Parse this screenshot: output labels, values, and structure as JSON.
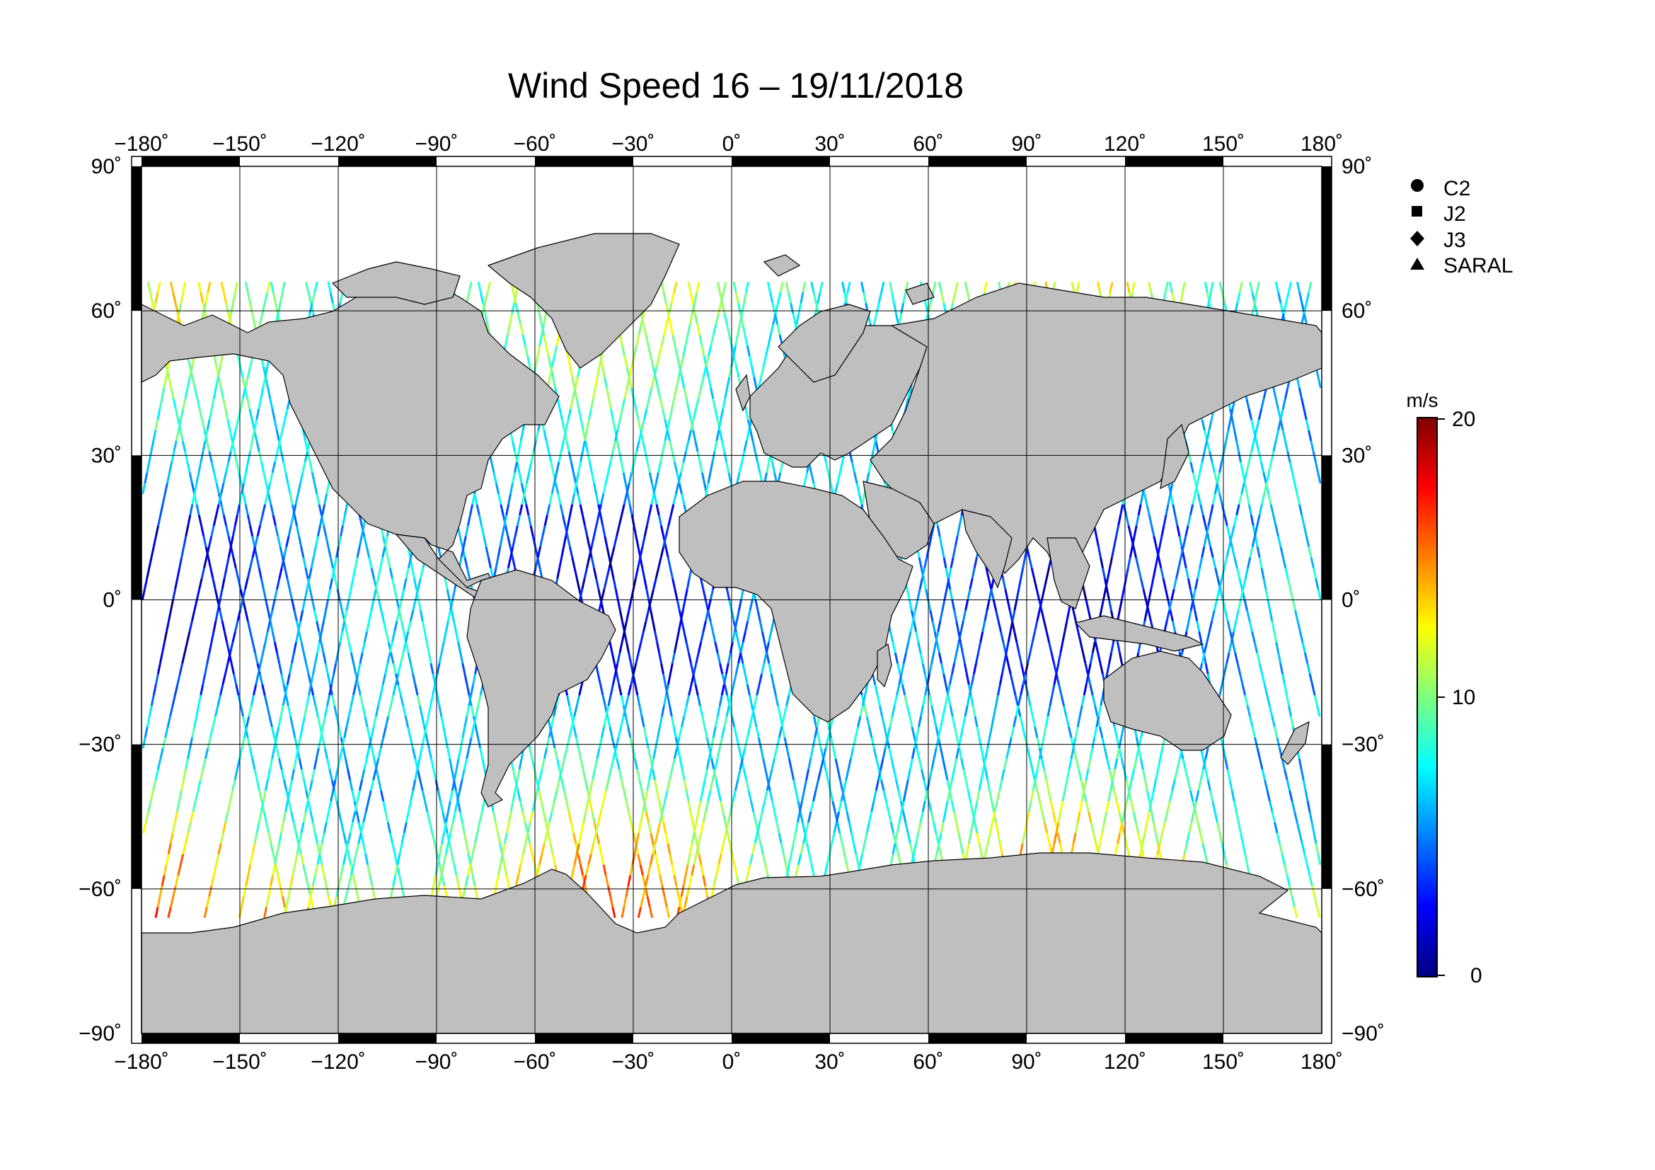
{
  "title": "Wind Speed 16 – 19/11/2018",
  "lon_ticks": [
    "−180˚",
    "−150˚",
    "−120˚",
    "−90˚",
    "−60˚",
    "−30˚",
    "0˚",
    "30˚",
    "60˚",
    "90˚",
    "120˚",
    "150˚",
    "180˚"
  ],
  "lat_ticks": [
    "90˚",
    "60˚",
    "30˚",
    "0˚",
    "−30˚",
    "−60˚",
    "−90˚"
  ],
  "legend": [
    {
      "label": "C2",
      "marker": "circle"
    },
    {
      "label": "J2",
      "marker": "square"
    },
    {
      "label": "J3",
      "marker": "diamond"
    },
    {
      "label": "SARAL",
      "marker": "triangle"
    }
  ],
  "colorbar": {
    "unit": "m/s",
    "labels": [
      "20",
      "10",
      "0"
    ],
    "min": 0,
    "max": 20,
    "colors": [
      "#00007f",
      "#0000ff",
      "#007fff",
      "#00ffff",
      "#7fff7f",
      "#ffff00",
      "#ff7f00",
      "#ff0000",
      "#7f0000"
    ]
  },
  "map": {
    "projection": "equirectangular",
    "lon_range": [
      -180,
      180
    ],
    "lat_range": [
      -90,
      90
    ],
    "land_color": "#bfbfbf",
    "ocean_color": "#ffffff",
    "grid_lon_step": 30,
    "grid_lat_step": 30
  }
}
